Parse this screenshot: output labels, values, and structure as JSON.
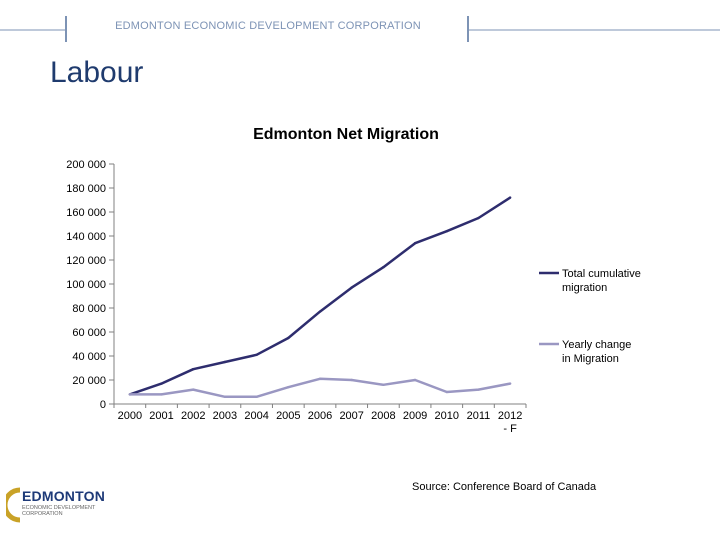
{
  "header": {
    "org_name": "EDMONTON ECONOMIC DEVELOPMENT CORPORATION"
  },
  "slide": {
    "title": "Labour",
    "source": "Source: Conference Board of Canada"
  },
  "logo": {
    "word": "EDMONTON",
    "subtitle": "ECONOMIC DEVELOPMENT CORPORATION"
  },
  "colors": {
    "header_line": "#7d93b5",
    "total_series": "#2e2d6e",
    "yearly_series": "#9a97c2",
    "axis": "#808080"
  },
  "chart_data": {
    "type": "line",
    "title": "Edmonton Net Migration",
    "xlabel": "",
    "ylabel": "",
    "x": [
      "2000",
      "2001",
      "2002",
      "2003",
      "2004",
      "2005",
      "2006",
      "2007",
      "2008",
      "2009",
      "2010",
      "2011",
      "2012 - F"
    ],
    "y_ticks": [
      "0",
      "20 000",
      "40 000",
      "60 000",
      "80 000",
      "100 000",
      "120 000",
      "140 000",
      "160 000",
      "180 000",
      "200 000"
    ],
    "ylim": [
      0,
      200000
    ],
    "grid": false,
    "legend_position": "right",
    "series": [
      {
        "name": "Total cumulative migration",
        "values": [
          8000,
          17000,
          29000,
          35000,
          41000,
          55000,
          77000,
          97000,
          114000,
          134000,
          144000,
          155000,
          172000
        ]
      },
      {
        "name": "Yearly change in Migration",
        "values": [
          8000,
          8000,
          12000,
          6000,
          6000,
          14000,
          21000,
          20000,
          16000,
          20000,
          10000,
          12000,
          17000
        ]
      }
    ]
  }
}
